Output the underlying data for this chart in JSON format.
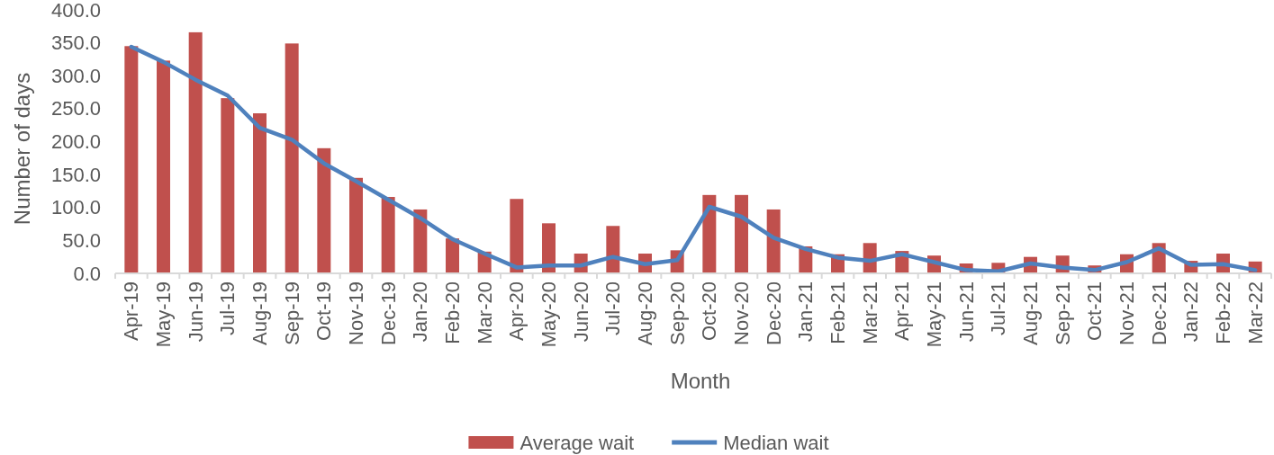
{
  "chart_data": {
    "type": "bar",
    "xlabel": "Month",
    "ylabel": "Number of days",
    "categories": [
      "Apr-19",
      "May-19",
      "Jun-19",
      "Jul-19",
      "Aug-19",
      "Sep-19",
      "Oct-19",
      "Nov-19",
      "Dec-19",
      "Jan-20",
      "Feb-20",
      "Mar-20",
      "Apr-20",
      "May-20",
      "Jun-20",
      "Jul-20",
      "Aug-20",
      "Sep-20",
      "Oct-20",
      "Nov-20",
      "Dec-20",
      "Jan-21",
      "Feb-21",
      "Mar-21",
      "Apr-21",
      "May-21",
      "Jun-21",
      "Jul-21",
      "Aug-21",
      "Sep-21",
      "Oct-21",
      "Nov-21",
      "Dec-21",
      "Jan-22",
      "Feb-22",
      "Mar-22"
    ],
    "series": [
      {
        "name": "Average wait",
        "color": "#c0504d",
        "values": [
          345,
          323,
          366,
          266,
          243,
          349,
          190,
          145,
          116,
          97,
          53,
          33,
          113,
          76,
          30,
          72,
          30,
          35,
          119,
          119,
          97,
          41,
          29,
          46,
          34,
          27,
          15,
          16,
          25,
          27,
          12,
          29,
          46,
          19,
          30,
          18
        ]
      },
      {
        "name": "Median wait",
        "type": "line",
        "color": "#4f81bd",
        "values": [
          344,
          321,
          294,
          270,
          221,
          203,
          167,
          140,
          112,
          84,
          52,
          30,
          9,
          12,
          12,
          25,
          14,
          20,
          101,
          86,
          54,
          37,
          24,
          19,
          29,
          17,
          5,
          3,
          15,
          9,
          5,
          17,
          38,
          13,
          14,
          5
        ]
      }
    ],
    "ylim": [
      0,
      400
    ],
    "yticks": [
      {
        "value": 0,
        "label": "0.0"
      },
      {
        "value": 50,
        "label": "50.0"
      },
      {
        "value": 100,
        "label": "100.0"
      },
      {
        "value": 150,
        "label": "150.0"
      },
      {
        "value": 200,
        "label": "200.0"
      },
      {
        "value": 250,
        "label": "250.0"
      },
      {
        "value": 300,
        "label": "300.0"
      },
      {
        "value": 350,
        "label": "350.0"
      },
      {
        "value": 400,
        "label": "400.0"
      }
    ],
    "legend": "bottom"
  }
}
